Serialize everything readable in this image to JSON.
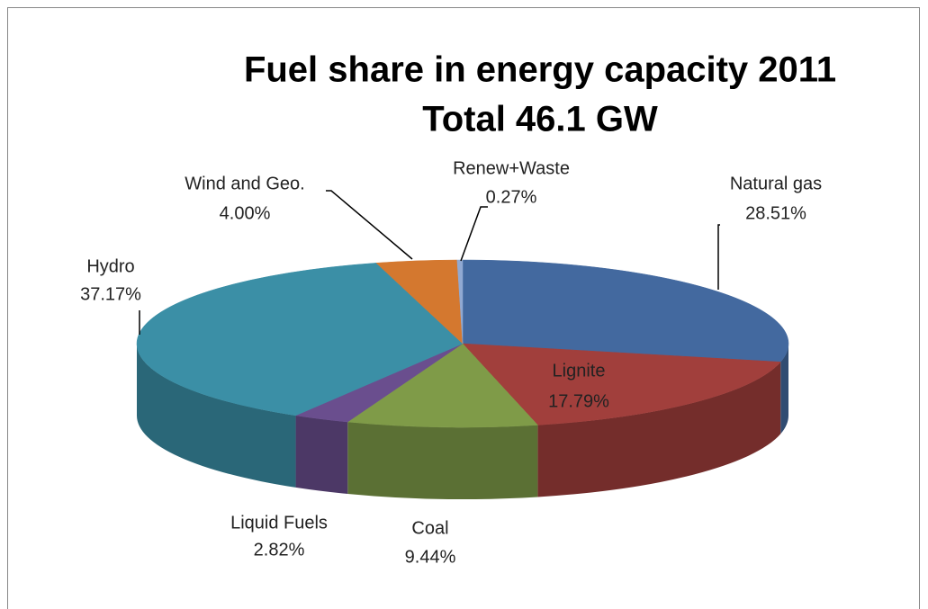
{
  "chart_data": {
    "type": "pie",
    "title": "Fuel share in energy capacity 2011",
    "subtitle": "Total 46.1 GW",
    "categories": [
      "Natural gas",
      "Lignite",
      "Coal",
      "Liquid Fuels",
      "Hydro",
      "Wind and Geo.",
      "Renew+Waste"
    ],
    "values": [
      28.51,
      17.79,
      9.44,
      2.82,
      37.17,
      4.0,
      0.27
    ],
    "value_labels": [
      "28.51%",
      "17.79%",
      "9.44%",
      "2.82%",
      "37.17%",
      "4.00%",
      "0.27%"
    ],
    "colors": [
      "#43699f",
      "#a13f3c",
      "#7f9b48",
      "#6a4e8e",
      "#3b8fa6",
      "#d4782f",
      "#91a9d2"
    ]
  }
}
